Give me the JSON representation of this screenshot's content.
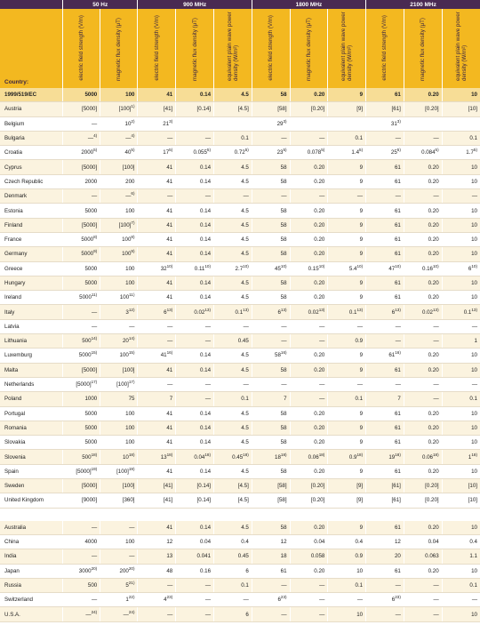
{
  "bands": [
    "50 Hz",
    "900 MHz",
    "1800 MHz",
    "2100 MHz"
  ],
  "country_label": "Country:",
  "col_headers": {
    "e": "electric field strength (V/m)",
    "b": "magnetic flux density (μT)",
    "s": "equivalent plain wave power density (W/m²)"
  },
  "ec_row": {
    "name": "1999/519/EC",
    "v": [
      "5000",
      "100",
      "41",
      "0.14",
      "4.5",
      "58",
      "0.20",
      "9",
      "61",
      "0.20",
      "10"
    ]
  },
  "rows": [
    {
      "name": "Austria",
      "v": [
        "[5000]",
        "[100]¹⁾",
        "[41]",
        "[0.14]",
        "[4.5]",
        "[58]",
        "[0.20]",
        "[9]",
        "[61]",
        "[0.20]",
        "[10]"
      ]
    },
    {
      "name": "Belgium",
      "v": [
        "—",
        "10²⁾",
        "21³⁾",
        "",
        "",
        "29³⁾",
        "",
        "",
        "31³⁾",
        "",
        ""
      ]
    },
    {
      "name": "Bulgaria",
      "v": [
        "—⁴⁾",
        "—⁴⁾",
        "—",
        "—",
        "0.1",
        "—",
        "—",
        "0.1",
        "—",
        "—",
        "0.1"
      ]
    },
    {
      "name": "Croatia",
      "v": [
        "2000⁵⁾",
        "40⁵⁾",
        "17⁵⁾",
        "0.055⁵⁾",
        "0.72⁵⁾",
        "23⁵⁾",
        "0.078⁵⁾",
        "1.4⁵⁾",
        "25⁵⁾",
        "0.084⁵⁾",
        "1.7⁵⁾"
      ]
    },
    {
      "name": "Cyprus",
      "v": [
        "[5000]",
        "[100]",
        "41",
        "0.14",
        "4.5",
        "58",
        "0.20",
        "9",
        "61",
        "0.20",
        "10"
      ]
    },
    {
      "name": "Czech Republic",
      "v": [
        "2000",
        "200",
        "41",
        "0.14",
        "4.5",
        "58",
        "0.20",
        "9",
        "61",
        "0.20",
        "10"
      ]
    },
    {
      "name": "Denmark",
      "v": [
        "—",
        "—⁶⁾",
        "—",
        "—",
        "—",
        "—",
        "—",
        "—",
        "—",
        "—",
        "—"
      ]
    },
    {
      "name": "Estonia",
      "v": [
        "5000",
        "100",
        "41",
        "0.14",
        "4.5",
        "58",
        "0.20",
        "9",
        "61",
        "0.20",
        "10"
      ]
    },
    {
      "name": "Finland",
      "v": [
        "[5000]",
        "[100]⁷⁾",
        "41",
        "0.14",
        "4.5",
        "58",
        "0.20",
        "9",
        "61",
        "0.20",
        "10"
      ]
    },
    {
      "name": "France",
      "v": [
        "5000⁸⁾",
        "100⁸⁾",
        "41",
        "0.14",
        "4.5",
        "58",
        "0.20",
        "9",
        "61",
        "0.20",
        "10"
      ]
    },
    {
      "name": "Germany",
      "v": [
        "5000⁹⁾",
        "100⁹⁾",
        "41",
        "0.14",
        "4.5",
        "58",
        "0.20",
        "9",
        "61",
        "0.20",
        "10"
      ]
    },
    {
      "name": "Greece",
      "v": [
        "5000",
        "100",
        "32¹⁰⁾",
        "0.11¹⁰⁾",
        "2.7¹⁰⁾",
        "45¹⁰⁾",
        "0.15¹⁰⁾",
        "5.4¹⁰⁾",
        "47¹⁰⁾",
        "0.16¹⁰⁾",
        "6¹⁰⁾"
      ]
    },
    {
      "name": "Hungary",
      "v": [
        "5000",
        "100",
        "41",
        "0.14",
        "4.5",
        "58",
        "0.20",
        "9",
        "61",
        "0.20",
        "10"
      ]
    },
    {
      "name": "Ireland",
      "v": [
        "5000¹¹⁾",
        "100¹¹⁾",
        "41",
        "0.14",
        "4.5",
        "58",
        "0.20",
        "9",
        "61",
        "0.20",
        "10"
      ]
    },
    {
      "name": "Italy",
      "v": [
        "—",
        "3¹²⁾",
        "6¹³⁾",
        "0.02¹³⁾",
        "0.1¹³⁾",
        "6¹³⁾",
        "0.02¹³⁾",
        "0.1¹³⁾",
        "6¹³⁾",
        "0.02¹³⁾",
        "0.1¹³⁾"
      ]
    },
    {
      "name": "Latvia",
      "v": [
        "—",
        "—",
        "—",
        "—",
        "—",
        "—",
        "—",
        "—",
        "—",
        "—",
        "—"
      ]
    },
    {
      "name": "Lithuania",
      "v": [
        "500¹⁴⁾",
        "20¹⁴⁾",
        "—",
        "—",
        "0.45",
        "—",
        "—",
        "0.9",
        "—",
        "—",
        "1"
      ]
    },
    {
      "name": "Luxemburg",
      "v": [
        "5000¹⁵⁾",
        "100¹⁵⁾",
        "41¹⁶⁾",
        "0.14",
        "4.5",
        "58¹⁶⁾",
        "0.20",
        "9",
        "61¹⁶⁾",
        "0.20",
        "10"
      ]
    },
    {
      "name": "Malta",
      "v": [
        "[5000]",
        "[100]",
        "41",
        "0.14",
        "4.5",
        "58",
        "0.20",
        "9",
        "61",
        "0.20",
        "10"
      ]
    },
    {
      "name": "Netherlands",
      "v": [
        "[5000]¹⁷⁾",
        "[100]¹⁷⁾",
        "—",
        "—",
        "—",
        "—",
        "—",
        "—",
        "—",
        "—",
        "—"
      ]
    },
    {
      "name": "Poland",
      "v": [
        "1000",
        "75",
        "7",
        "—",
        "0.1",
        "7",
        "—",
        "0.1",
        "7",
        "—",
        "0.1"
      ]
    },
    {
      "name": "Portugal",
      "v": [
        "5000",
        "100",
        "41",
        "0.14",
        "4.5",
        "58",
        "0.20",
        "9",
        "61",
        "0.20",
        "10"
      ]
    },
    {
      "name": "Romania",
      "v": [
        "5000",
        "100",
        "41",
        "0.14",
        "4.5",
        "58",
        "0.20",
        "9",
        "61",
        "0.20",
        "10"
      ]
    },
    {
      "name": "Slovakia",
      "v": [
        "5000",
        "100",
        "41",
        "0.14",
        "4.5",
        "58",
        "0.20",
        "9",
        "61",
        "0.20",
        "10"
      ]
    },
    {
      "name": "Slovenia",
      "v": [
        "500¹⁸⁾",
        "10¹⁸⁾",
        "13¹⁸⁾",
        "0.04¹⁸⁾",
        "0.45¹⁸⁾",
        "18¹⁸⁾",
        "0.06¹⁸⁾",
        "0.9¹⁸⁾",
        "19¹⁸⁾",
        "0.06¹⁸⁾",
        "1¹⁸⁾"
      ]
    },
    {
      "name": "Spain",
      "v": [
        "[5000]¹⁹⁾",
        "[100]¹⁹⁾",
        "41",
        "0.14",
        "4.5",
        "58",
        "0.20",
        "9",
        "61",
        "0.20",
        "10"
      ]
    },
    {
      "name": "Sweden",
      "v": [
        "[5000]",
        "[100]",
        "[41]",
        "[0.14]",
        "[4.5]",
        "[58]",
        "[0.20]",
        "[9]",
        "[61]",
        "[0.20]",
        "[10]"
      ]
    },
    {
      "name": "United Kingdom",
      "v": [
        "[9000]",
        "[360]",
        "[41]",
        "[0.14]",
        "[4.5]",
        "[58]",
        "[0.20]",
        "[9]",
        "[61]",
        "[0.20]",
        "[10]"
      ]
    }
  ],
  "other_rows": [
    {
      "name": "Australia",
      "v": [
        "—",
        "—",
        "41",
        "0.14",
        "4.5",
        "58",
        "0.20",
        "9",
        "61",
        "0.20",
        "10"
      ]
    },
    {
      "name": "China",
      "v": [
        "4000",
        "100",
        "12",
        "0.04",
        "0.4",
        "12",
        "0.04",
        "0.4",
        "12",
        "0.04",
        "0.4"
      ]
    },
    {
      "name": "India",
      "v": [
        "—",
        "—",
        "13",
        "0.041",
        "0.45",
        "18",
        "0.058",
        "0.9",
        "20",
        "0.063",
        "1.1"
      ]
    },
    {
      "name": "Japan",
      "v": [
        "3000²⁰⁾",
        "200²⁰⁾",
        "48",
        "0.16",
        "6",
        "61",
        "0.20",
        "10",
        "61",
        "0.20",
        "10"
      ]
    },
    {
      "name": "Russia",
      "v": [
        "500",
        "5²¹⁾",
        "—",
        "—",
        "0.1",
        "—",
        "—",
        "0.1",
        "—",
        "—",
        "0.1"
      ]
    },
    {
      "name": "Switzerland",
      "v": [
        "—",
        "1²²⁾",
        "4²³⁾",
        "—",
        "—",
        "6²³⁾",
        "—",
        "—",
        "6²³⁾",
        "—",
        "—"
      ]
    },
    {
      "name": "U.S.A.",
      "v": [
        "—²⁴⁾",
        "—²⁴⁾",
        "—",
        "—",
        "6",
        "—",
        "—",
        "10",
        "—",
        "—",
        "10"
      ]
    }
  ]
}
